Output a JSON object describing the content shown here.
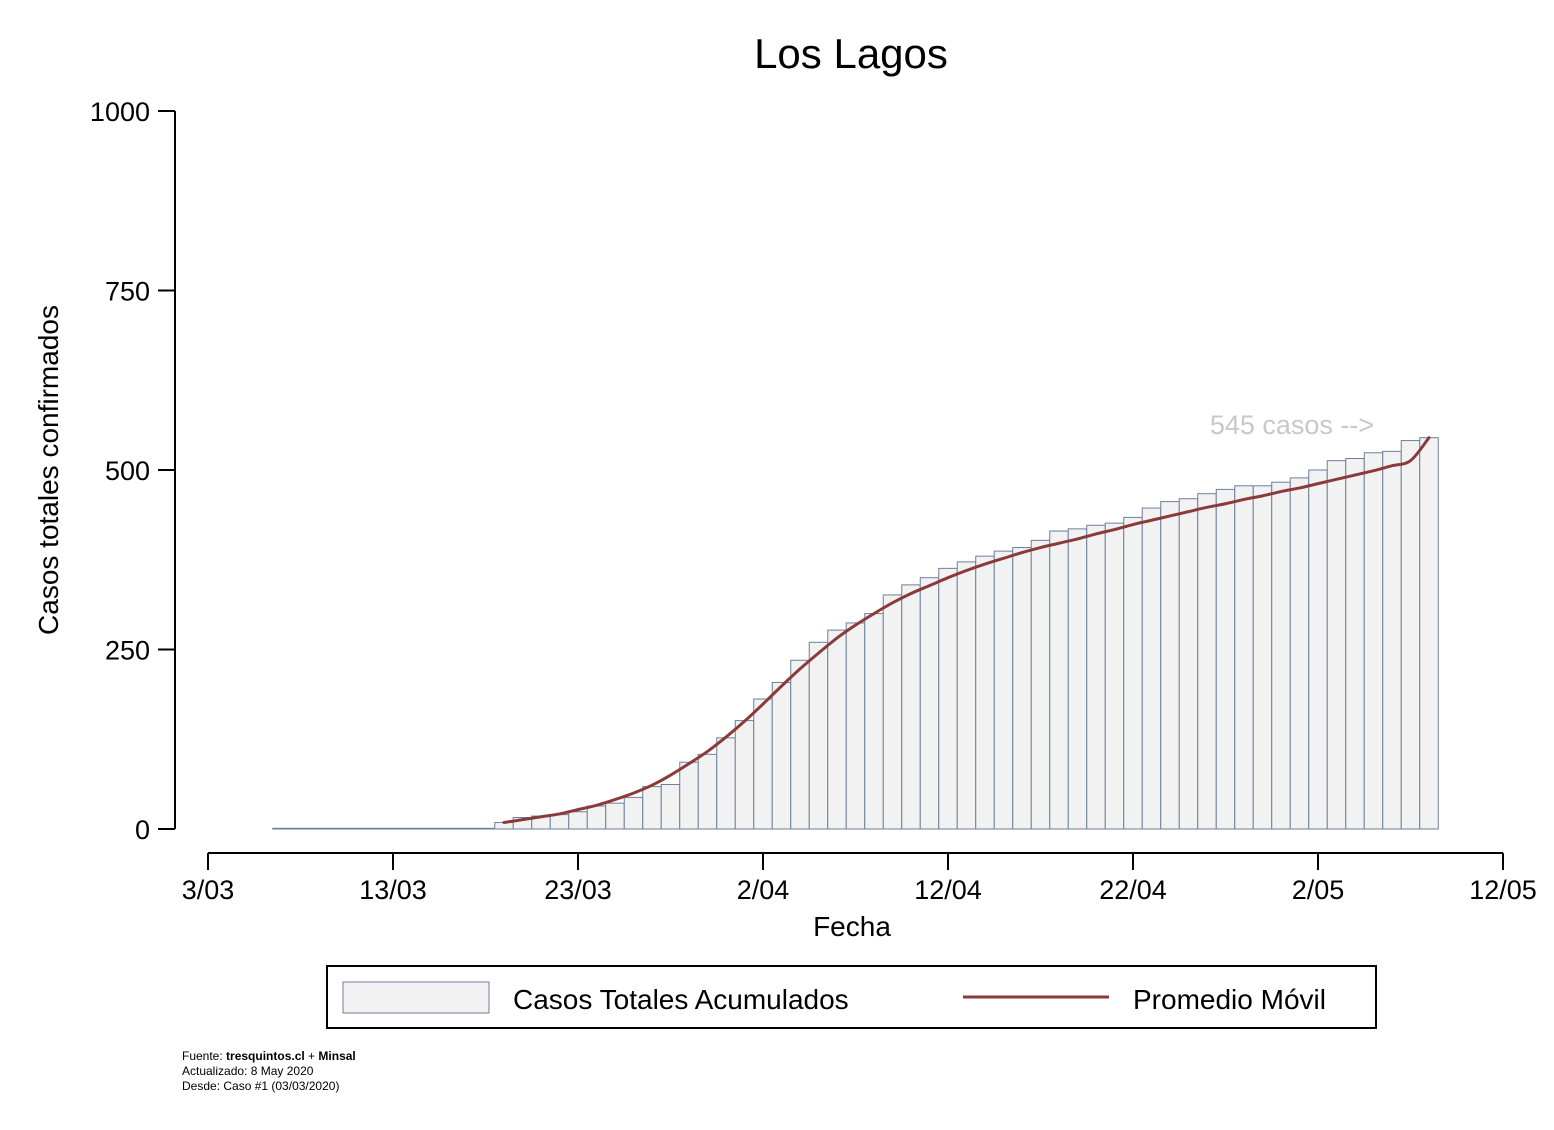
{
  "chart_data": {
    "type": "bar",
    "title": "Los Lagos",
    "xlabel": "Fecha",
    "ylabel": "Casos totales confirmados",
    "ylim": [
      0,
      1000
    ],
    "yticks": [
      0,
      250,
      500,
      750,
      1000
    ],
    "ytick_labels": [
      "0",
      "250",
      "500",
      "750",
      "1000"
    ],
    "xlim": [
      "2020-03-03",
      "2020-05-12"
    ],
    "xticks": [
      "2020-03-03",
      "2020-03-13",
      "2020-03-23",
      "2020-04-02",
      "2020-04-12",
      "2020-04-22",
      "2020-05-02",
      "2020-05-12"
    ],
    "xtick_labels": [
      "3/03",
      "13/03",
      "23/03",
      "2/04",
      "12/04",
      "22/04",
      "2/05",
      "12/05"
    ],
    "grid": false,
    "legend_position": "bottom",
    "colors": {
      "bar_fill": "#f2f2f2",
      "bar_edge": "#6d7f9c",
      "line": "#8b3a3a",
      "annotation": "#c8c8c8"
    },
    "categories": [
      "2020-03-07",
      "2020-03-08",
      "2020-03-09",
      "2020-03-10",
      "2020-03-11",
      "2020-03-12",
      "2020-03-13",
      "2020-03-14",
      "2020-03-15",
      "2020-03-16",
      "2020-03-17",
      "2020-03-18",
      "2020-03-19",
      "2020-03-20",
      "2020-03-21",
      "2020-03-22",
      "2020-03-23",
      "2020-03-24",
      "2020-03-25",
      "2020-03-26",
      "2020-03-27",
      "2020-03-28",
      "2020-03-29",
      "2020-03-30",
      "2020-03-31",
      "2020-04-01",
      "2020-04-02",
      "2020-04-03",
      "2020-04-04",
      "2020-04-05",
      "2020-04-06",
      "2020-04-07",
      "2020-04-08",
      "2020-04-09",
      "2020-04-10",
      "2020-04-11",
      "2020-04-12",
      "2020-04-13",
      "2020-04-14",
      "2020-04-15",
      "2020-04-16",
      "2020-04-17",
      "2020-04-18",
      "2020-04-19",
      "2020-04-20",
      "2020-04-21",
      "2020-04-22",
      "2020-04-23",
      "2020-04-24",
      "2020-04-25",
      "2020-04-26",
      "2020-04-27",
      "2020-04-28",
      "2020-04-29",
      "2020-04-30",
      "2020-05-01",
      "2020-05-02",
      "2020-05-03",
      "2020-05-04",
      "2020-05-05",
      "2020-05-06",
      "2020-05-07",
      "2020-05-08"
    ],
    "series": [
      {
        "name": "Casos Totales Acumulados",
        "type": "bar",
        "values": [
          1,
          1,
          1,
          1,
          1,
          1,
          1,
          1,
          1,
          1,
          1,
          1,
          9,
          16,
          18,
          20,
          24,
          32,
          36,
          44,
          59,
          62,
          93,
          104,
          127,
          151,
          181,
          204,
          235,
          260,
          277,
          287,
          300,
          326,
          340,
          350,
          363,
          372,
          380,
          387,
          392,
          402,
          415,
          418,
          423,
          426,
          434,
          447,
          456,
          460,
          467,
          473,
          478,
          478,
          483,
          489,
          500,
          513,
          516,
          524,
          526,
          541,
          545
        ]
      },
      {
        "name": "Promedio Móvil",
        "type": "line",
        "x": [
          "2020-03-19",
          "2020-03-20",
          "2020-03-21",
          "2020-03-22",
          "2020-03-23",
          "2020-03-24",
          "2020-03-25",
          "2020-03-26",
          "2020-03-27",
          "2020-03-28",
          "2020-03-29",
          "2020-03-30",
          "2020-03-31",
          "2020-04-01",
          "2020-04-02",
          "2020-04-03",
          "2020-04-04",
          "2020-04-05",
          "2020-04-06",
          "2020-04-07",
          "2020-04-08",
          "2020-04-09",
          "2020-04-10",
          "2020-04-11",
          "2020-04-12",
          "2020-04-13",
          "2020-04-14",
          "2020-04-15",
          "2020-04-16",
          "2020-04-17",
          "2020-04-18",
          "2020-04-19",
          "2020-04-20",
          "2020-04-21",
          "2020-04-22",
          "2020-04-23",
          "2020-04-24",
          "2020-04-25",
          "2020-04-26",
          "2020-04-27",
          "2020-04-28",
          "2020-04-29",
          "2020-04-30",
          "2020-05-01",
          "2020-05-02",
          "2020-05-03",
          "2020-05-04",
          "2020-05-05",
          "2020-05-06",
          "2020-05-07",
          "2020-05-08"
        ],
        "values": [
          9,
          13,
          17,
          21,
          27,
          33,
          41,
          50,
          61,
          75,
          91,
          108,
          128,
          150,
          174,
          199,
          223,
          245,
          266,
          284,
          300,
          315,
          328,
          339,
          350,
          360,
          369,
          377,
          385,
          392,
          398,
          404,
          411,
          417,
          424,
          430,
          436,
          442,
          448,
          453,
          459,
          464,
          470,
          475,
          481,
          487,
          493,
          499,
          506,
          513,
          545
        ]
      }
    ],
    "annotations": [
      {
        "text": "545 casos -->",
        "x": "2020-05-01",
        "y": 545
      }
    ],
    "legend": [
      {
        "label": "Casos Totales Acumulados",
        "kind": "bar"
      },
      {
        "label": "Promedio Móvil",
        "kind": "line"
      }
    ]
  },
  "footer": {
    "source_prefix": "Fuente: ",
    "source_site": "tresquintos.cl",
    "source_sep": " + ",
    "source_org": "Minsal",
    "updated": "Actualizado: 8 May 2020",
    "since": "Desde: Caso #1  (03/03/2020)"
  }
}
